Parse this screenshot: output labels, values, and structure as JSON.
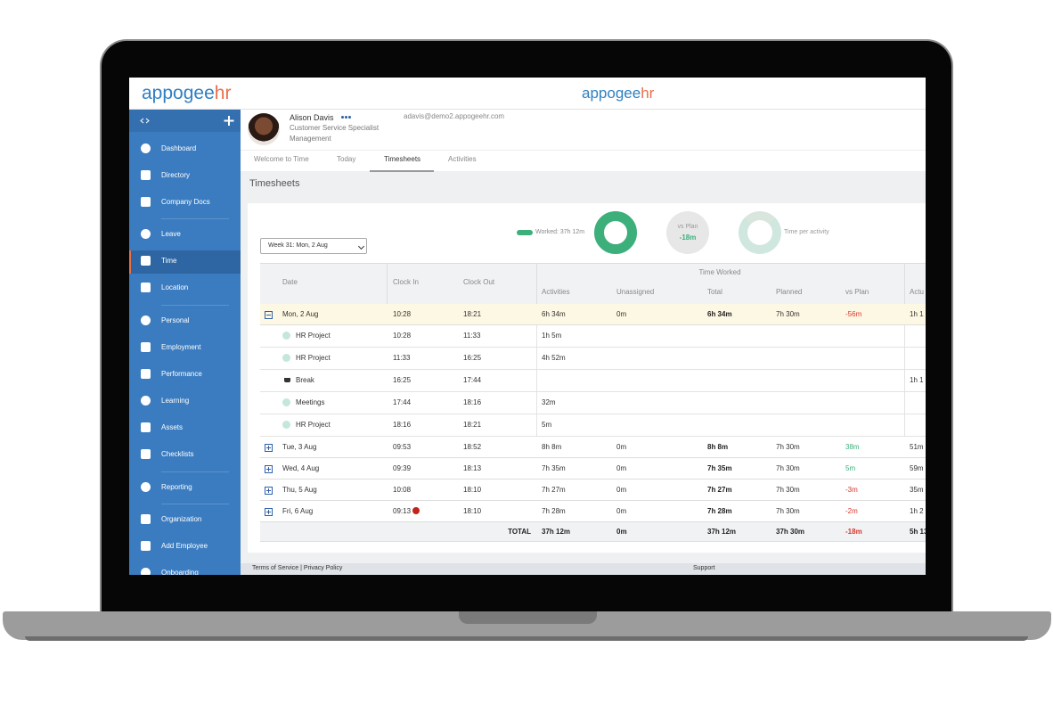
{
  "header": {
    "logo": "appogee",
    "logo_accent": "hr"
  },
  "sidebar": {
    "items": [
      "Dashboard",
      "Directory",
      "Company Docs",
      "Leave",
      "Time",
      "Location",
      "Personal",
      "Employment",
      "Performance",
      "Learning",
      "Assets",
      "Checklists",
      "Reporting",
      "Organization",
      "Add Employee",
      "Onboarding"
    ]
  },
  "profile": {
    "name": "Alison Davis",
    "role": "Customer Service Specialist",
    "department": "Management",
    "email": "adavis@demo2.appogeehr.com"
  },
  "tabs": [
    "Welcome to Time",
    "Today",
    "Timesheets",
    "Activities"
  ],
  "page_title": "Timesheets",
  "week_select": "Week 31: Mon, 2 Aug",
  "summary": {
    "worked": "Worked: 37h 12m",
    "vs_plan_label": "vs Plan",
    "vs_plan_value": "-18m",
    "time_per_activity": "Time per activity"
  },
  "table": {
    "group_header": "Time Worked",
    "columns": {
      "date": "Date",
      "clock_in": "Clock In",
      "clock_out": "Clock Out",
      "activities": "Activities",
      "unassigned": "Unassigned",
      "total": "Total",
      "planned": "Planned",
      "vs_plan": "vs Plan",
      "actual": "Actu"
    },
    "days": [
      {
        "date": "Mon, 2 Aug",
        "clock_in": "10:28",
        "clock_out": "18:21",
        "activities": "6h 34m",
        "unassigned": "0m",
        "total": "6h 34m",
        "planned": "7h 30m",
        "vs_plan": "-56m",
        "actual": "1h 1",
        "entries": [
          {
            "name": "HR Project",
            "clock_in": "10:28",
            "clock_out": "11:33",
            "activities": "1h 5m"
          },
          {
            "name": "HR Project",
            "clock_in": "11:33",
            "clock_out": "16:25",
            "activities": "4h 52m"
          },
          {
            "name": "Break",
            "clock_in": "16:25",
            "clock_out": "17:44",
            "actual": "1h 1"
          },
          {
            "name": "Meetings",
            "clock_in": "17:44",
            "clock_out": "18:16",
            "activities": "32m"
          },
          {
            "name": "HR Project",
            "clock_in": "18:16",
            "clock_out": "18:21",
            "activities": "5m"
          }
        ]
      },
      {
        "date": "Tue, 3 Aug",
        "clock_in": "09:53",
        "clock_out": "18:52",
        "activities": "8h 8m",
        "unassigned": "0m",
        "total": "8h 8m",
        "planned": "7h 30m",
        "vs_plan": "38m",
        "actual": "51m"
      },
      {
        "date": "Wed, 4 Aug",
        "clock_in": "09:39",
        "clock_out": "18:13",
        "activities": "7h 35m",
        "unassigned": "0m",
        "total": "7h 35m",
        "planned": "7h 30m",
        "vs_plan": "5m",
        "actual": "59m"
      },
      {
        "date": "Thu, 5 Aug",
        "clock_in": "10:08",
        "clock_out": "18:10",
        "activities": "7h 27m",
        "unassigned": "0m",
        "total": "7h 27m",
        "planned": "7h 30m",
        "vs_plan": "-3m",
        "actual": "35m"
      },
      {
        "date": "Fri, 6 Aug",
        "clock_in": "09:13",
        "clock_out": "18:10",
        "activities": "7h 28m",
        "unassigned": "0m",
        "total": "7h 28m",
        "planned": "7h 30m",
        "vs_plan": "-2m",
        "actual": "1h 2"
      }
    ],
    "totals": {
      "label": "TOTAL",
      "activities": "37h 12m",
      "unassigned": "0m",
      "total": "37h 12m",
      "planned": "37h 30m",
      "vs_plan": "-18m",
      "actual": "5h 13"
    }
  },
  "footer": {
    "links": "Terms of Service | Privacy Policy",
    "support": "Support"
  }
}
